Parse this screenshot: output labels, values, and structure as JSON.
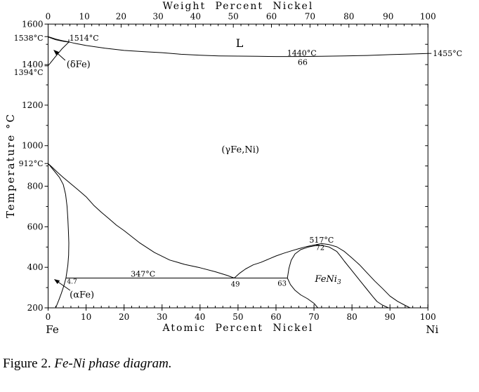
{
  "figure": {
    "caption_prefix": "Figure 2. ",
    "caption_italic": "Fe-Ni phase diagram."
  },
  "chart_data": {
    "type": "line",
    "title": "Fe-Ni phase diagram",
    "x_range": [
      0,
      100
    ],
    "y_range": [
      200,
      1600
    ],
    "colors": {
      "fg": "#000000",
      "bg": "#ffffff"
    },
    "top_axis": {
      "title": "Weight Percent Nickel",
      "tick_labels": [
        "0",
        "10",
        "20",
        "30",
        "40",
        "50",
        "60",
        "70",
        "80",
        "90",
        "100"
      ],
      "tick_at_positions": [
        0,
        9.56,
        19.22,
        28.97,
        38.81,
        48.76,
        58.8,
        68.95,
        79.19,
        89.54,
        100
      ]
    },
    "bottom_axis": {
      "title": "Atomic Percent Nickel",
      "tick_values": [
        0,
        10,
        20,
        30,
        40,
        50,
        60,
        70,
        80,
        90,
        100
      ],
      "minor_step": 2,
      "endpoint_left": "Fe",
      "endpoint_right": "Ni"
    },
    "left_axis": {
      "title": "Temperature °C",
      "labeled_values": [
        200,
        400,
        600,
        800,
        1000,
        1200,
        1400,
        1600
      ],
      "minor_step": 100,
      "special_ticks": [
        {
          "label": "1538°C",
          "T": 1538,
          "dy": 2
        },
        {
          "label": "1394°C",
          "T": 1394,
          "dy": 9
        },
        {
          "label": "912°C",
          "T": 912,
          "dy": 0
        }
      ]
    },
    "right_axis": {
      "minor_step": 100,
      "special_ticks": [
        {
          "label": "1455°C",
          "T": 1455
        }
      ]
    },
    "series": [
      {
        "name": "liquidus-solidus",
        "points": [
          [
            0,
            1538
          ],
          [
            2,
            1526
          ],
          [
            4,
            1517
          ],
          [
            5.4,
            1512
          ],
          [
            7,
            1505
          ],
          [
            10,
            1494
          ],
          [
            15,
            1481
          ],
          [
            20,
            1470
          ],
          [
            25,
            1464
          ],
          [
            30,
            1459
          ],
          [
            35,
            1451
          ],
          [
            40,
            1446
          ],
          [
            45,
            1443
          ],
          [
            50,
            1442
          ],
          [
            55,
            1441
          ],
          [
            60,
            1440
          ],
          [
            66,
            1440
          ],
          [
            72,
            1441
          ],
          [
            78,
            1443
          ],
          [
            84,
            1445
          ],
          [
            90,
            1449
          ],
          [
            95,
            1452
          ],
          [
            100,
            1455
          ]
        ]
      },
      {
        "name": "delta-solidus",
        "points": [
          [
            0,
            1536
          ],
          [
            2,
            1523
          ],
          [
            4,
            1515
          ],
          [
            5.4,
            1511
          ]
        ]
      },
      {
        "name": "delta-gamma-boundary",
        "points": [
          [
            0,
            1394
          ],
          [
            1.8,
            1436
          ],
          [
            3.6,
            1477
          ],
          [
            5.4,
            1510
          ]
        ]
      },
      {
        "name": "gamma-solvus",
        "points": [
          [
            0,
            912
          ],
          [
            1,
            895
          ],
          [
            2.5,
            868
          ],
          [
            4,
            843
          ],
          [
            6,
            812
          ],
          [
            8,
            780
          ],
          [
            10,
            748
          ],
          [
            12,
            706
          ],
          [
            14,
            672
          ],
          [
            16,
            640
          ],
          [
            18,
            608
          ],
          [
            20,
            581
          ],
          [
            24,
            522
          ],
          [
            28,
            473
          ],
          [
            32,
            436
          ],
          [
            36,
            414
          ],
          [
            40,
            398
          ],
          [
            44,
            378
          ],
          [
            47,
            361
          ],
          [
            49,
            347
          ]
        ]
      },
      {
        "name": "alpha-solvus-upper",
        "points": [
          [
            0,
            912
          ],
          [
            1.5,
            878
          ],
          [
            3,
            843
          ],
          [
            4,
            808
          ],
          [
            4.6,
            760
          ],
          [
            5,
            700
          ],
          [
            5.2,
            640
          ],
          [
            5.35,
            580
          ],
          [
            5.45,
            520
          ],
          [
            5.4,
            460
          ],
          [
            5.2,
            410
          ],
          [
            4.7,
            347
          ]
        ]
      },
      {
        "name": "alpha-solvus-lower",
        "points": [
          [
            4.7,
            347
          ],
          [
            4.2,
            312
          ],
          [
            3.5,
            272
          ],
          [
            2.8,
            237
          ],
          [
            2.0,
            200
          ]
        ]
      },
      {
        "name": "eutectoid-line-347",
        "points": [
          [
            4.7,
            347
          ],
          [
            63,
            347
          ]
        ]
      },
      {
        "name": "feni3-dome-outer",
        "points": [
          [
            49,
            347
          ],
          [
            50.5,
            372
          ],
          [
            52,
            392
          ],
          [
            54,
            412
          ],
          [
            56,
            424
          ],
          [
            58,
            440
          ],
          [
            60,
            456
          ],
          [
            62,
            469
          ],
          [
            64,
            481
          ],
          [
            66,
            492
          ],
          [
            68,
            502
          ],
          [
            70,
            510
          ],
          [
            72,
            517
          ],
          [
            74,
            512
          ],
          [
            76,
            501
          ],
          [
            78,
            478
          ],
          [
            80,
            446
          ],
          [
            82,
            412
          ],
          [
            84,
            372
          ],
          [
            86,
            332
          ],
          [
            88,
            296
          ],
          [
            90,
            258
          ],
          [
            92,
            232
          ],
          [
            94,
            212
          ],
          [
            95.3,
            200
          ]
        ]
      },
      {
        "name": "feni3-dome-inner",
        "points": [
          [
            63,
            347
          ],
          [
            63.4,
            395
          ],
          [
            64,
            435
          ],
          [
            65,
            466
          ],
          [
            66.5,
            487
          ],
          [
            68.5,
            500
          ],
          [
            70.5,
            507
          ],
          [
            72,
            508
          ],
          [
            74,
            500
          ],
          [
            76,
            478
          ],
          [
            77,
            455
          ],
          [
            78,
            430
          ],
          [
            79.5,
            395
          ],
          [
            81,
            360
          ],
          [
            82.5,
            325
          ],
          [
            84,
            290
          ],
          [
            85.5,
            255
          ],
          [
            86.6,
            231
          ],
          [
            88,
            214
          ],
          [
            89.6,
            200
          ]
        ]
      },
      {
        "name": "feni3-left-boundary",
        "points": [
          [
            63,
            347
          ],
          [
            63.8,
            315
          ],
          [
            65,
            287
          ],
          [
            66.5,
            264
          ],
          [
            68.3,
            245
          ],
          [
            70,
            222
          ],
          [
            71,
            200
          ]
        ]
      }
    ],
    "annotations": [
      {
        "text": "1514°C",
        "x": 5.6,
        "T": 1531,
        "anchor": "start",
        "fs": 11
      },
      {
        "text": "1440°C",
        "x": 66.8,
        "T": 1457,
        "anchor": "middle",
        "fs": 11
      },
      {
        "text": "66",
        "x": 67.0,
        "T": 1413,
        "anchor": "middle",
        "fs": 11
      },
      {
        "text": "L",
        "x": 50.4,
        "T": 1507,
        "anchor": "middle",
        "fs": 16
      },
      {
        "text": "(γFe,Ni)",
        "x": 50.6,
        "T": 984,
        "anchor": "middle",
        "fs": 13
      },
      {
        "text": "517°C",
        "x": 72.0,
        "T": 535,
        "anchor": "middle",
        "fs": 11
      },
      {
        "text": "72",
        "x": 71.6,
        "T": 499,
        "anchor": "middle",
        "fs": 10
      },
      {
        "text": "347°C",
        "x": 25.0,
        "T": 367,
        "anchor": "middle",
        "fs": 11
      },
      {
        "text": "49",
        "x": 49.3,
        "T": 319,
        "anchor": "middle",
        "fs": 10
      },
      {
        "text": "63",
        "x": 61.6,
        "T": 322,
        "anchor": "middle",
        "fs": 10
      },
      {
        "text": "4.7",
        "x": 6.3,
        "T": 330,
        "anchor": "middle",
        "fs": 9
      },
      {
        "text": "FeNi",
        "sub": "3",
        "x": 73.7,
        "T": 345,
        "anchor": "middle",
        "fs": 13,
        "italic": true
      },
      {
        "text": "(αFe)",
        "x": 8.9,
        "T": 268,
        "anchor": "middle",
        "fs": 13
      },
      {
        "text": "(δFe)",
        "x": 8.0,
        "T": 1403,
        "anchor": "middle",
        "fs": 13
      }
    ],
    "arrows": [
      {
        "name": "alpha-fe-arrow",
        "from": [
          5.8,
          286
        ],
        "to": [
          1.55,
          342
        ]
      },
      {
        "name": "delta-fe-arrow",
        "from": [
          4.5,
          1421
        ],
        "to": [
          1.4,
          1473
        ]
      }
    ],
    "leaders": [
      {
        "name": "peritectic-leader",
        "from": [
          5.45,
          1524
        ],
        "to": [
          5.45,
          1508
        ]
      }
    ]
  }
}
